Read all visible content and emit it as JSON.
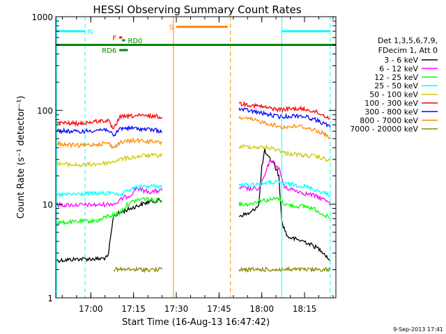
{
  "chart_data": {
    "type": "line",
    "title": "HESSI Observing Summary Count Rates",
    "xlabel": "Start Time (16-Aug-13 16:47:42)",
    "ylabel": "Count Rate (s⁻¹ detector⁻¹)",
    "xlim": [
      "16:47:42",
      "18:26:00"
    ],
    "ylim": [
      1,
      1000
    ],
    "yscale": "log",
    "x_ticks": [
      "17:00",
      "17:15",
      "17:30",
      "17:45",
      "18:00",
      "18:15"
    ],
    "y_ticks": [
      "1",
      "10",
      "100",
      "1000"
    ],
    "legend_header": [
      "Det 1,3,5,6,7,9,",
      "FDecim 1, Att 0"
    ],
    "legend_position": "right",
    "timestamp": "9-Sep-2013 17:41",
    "series": [
      {
        "name": "3 - 6 keV",
        "color": "#000000",
        "segments": [
          {
            "x": [
              "16:48",
              "16:56",
              "17:03",
              "17:06",
              "17:08",
              "17:10",
              "17:12",
              "17:14",
              "17:16",
              "17:20",
              "17:24",
              "17:25"
            ],
            "y": [
              2.5,
              2.6,
              2.6,
              2.7,
              7.5,
              8.0,
              8.5,
              9.0,
              9.5,
              10.5,
              11.0,
              10.8
            ]
          },
          {
            "x": [
              "17:52",
              "17:56",
              "17:59",
              "18:00",
              "18:01",
              "18:02",
              "18:04",
              "18:06",
              "18:07",
              "18:09",
              "18:12",
              "18:15",
              "18:18",
              "18:21",
              "18:24"
            ],
            "y": [
              7.5,
              8.0,
              10.0,
              25.0,
              37.0,
              32.0,
              28.0,
              20.0,
              6.5,
              4.5,
              4.2,
              4.0,
              3.6,
              3.2,
              2.5
            ]
          }
        ]
      },
      {
        "name": "6 - 12 keV",
        "color": "#ff00ff",
        "segments": [
          {
            "x": [
              "16:48",
              "16:56",
              "17:03",
              "17:06",
              "17:09",
              "17:11",
              "17:14",
              "17:16",
              "17:18",
              "17:21",
              "17:25"
            ],
            "y": [
              9.8,
              9.8,
              9.8,
              10.0,
              10.2,
              11.5,
              12.5,
              15.0,
              14.0,
              13.5,
              14.0
            ]
          },
          {
            "x": [
              "17:52",
              "17:56",
              "17:59",
              "18:01",
              "18:03",
              "18:06",
              "18:08",
              "18:12",
              "18:15",
              "18:18",
              "18:21",
              "18:24"
            ],
            "y": [
              15.0,
              14.5,
              14.5,
              20.0,
              30.0,
              24.0,
              15.0,
              14.0,
              13.0,
              12.5,
              11.5,
              10.5
            ]
          }
        ]
      },
      {
        "name": "12 - 25 keV",
        "color": "#00ff00",
        "segments": [
          {
            "x": [
              "16:48",
              "16:56",
              "17:03",
              "17:06",
              "17:08",
              "17:10",
              "17:13",
              "17:16",
              "17:19",
              "17:22",
              "17:25"
            ],
            "y": [
              6.3,
              6.5,
              6.7,
              7.5,
              7.6,
              8.0,
              10.0,
              11.0,
              11.5,
              11.0,
              11.0
            ]
          },
          {
            "x": [
              "17:52",
              "17:56",
              "17:59",
              "18:02",
              "18:06",
              "18:08",
              "18:12",
              "18:15",
              "18:18",
              "18:21",
              "18:24"
            ],
            "y": [
              10.0,
              10.0,
              11.0,
              11.0,
              11.5,
              10.0,
              9.5,
              9.5,
              9.0,
              8.0,
              7.0
            ]
          }
        ]
      },
      {
        "name": "25 - 50 keV",
        "color": "#00ffff",
        "segments": [
          {
            "x": [
              "16:48",
              "16:56",
              "17:03",
              "17:06",
              "17:08",
              "17:10",
              "17:13",
              "17:16",
              "17:19",
              "17:22",
              "17:25"
            ],
            "y": [
              12.5,
              12.8,
              13.0,
              13.0,
              13.5,
              12.0,
              14.0,
              15.0,
              15.5,
              15.5,
              15.5
            ]
          },
          {
            "x": [
              "17:52",
              "17:56",
              "17:59",
              "18:02",
              "18:06",
              "18:08",
              "18:12",
              "18:15",
              "18:18",
              "18:21",
              "18:24"
            ],
            "y": [
              16.0,
              16.0,
              16.5,
              17.0,
              17.0,
              16.5,
              16.0,
              15.5,
              14.5,
              13.5,
              12.5
            ]
          }
        ]
      },
      {
        "name": "50 - 100 keV",
        "color": "#cccc00",
        "segments": [
          {
            "x": [
              "16:48",
              "16:56",
              "17:03",
              "17:06",
              "17:08",
              "17:10",
              "17:13",
              "17:16",
              "17:19",
              "17:22",
              "17:25"
            ],
            "y": [
              27.0,
              26.0,
              27.0,
              27.5,
              28.5,
              30.0,
              31.0,
              32.0,
              33.0,
              33.0,
              33.0
            ]
          },
          {
            "x": [
              "17:52",
              "17:56",
              "17:59",
              "18:02",
              "18:06",
              "18:08",
              "18:12",
              "18:15",
              "18:18",
              "18:21",
              "18:24"
            ],
            "y": [
              41.0,
              41.0,
              40.5,
              40.0,
              38.0,
              35.0,
              34.0,
              33.0,
              32.5,
              31.0,
              29.0
            ]
          }
        ]
      },
      {
        "name": "100 - 300 keV",
        "color": "#ff0000",
        "segments": [
          {
            "x": [
              "16:48",
              "16:52",
              "16:56",
              "17:00",
              "17:03",
              "17:06",
              "17:08",
              "17:10",
              "17:13",
              "17:16",
              "17:19",
              "17:22",
              "17:25"
            ],
            "y": [
              74.0,
              73.0,
              72.0,
              75.0,
              77.0,
              78.0,
              62.0,
              85.0,
              86.0,
              88.0,
              87.0,
              87.0,
              85.0
            ]
          },
          {
            "x": [
              "17:52",
              "17:55",
              "17:58",
              "18:01",
              "18:04",
              "18:07",
              "18:10",
              "18:13",
              "18:16",
              "18:19",
              "18:22",
              "18:24"
            ],
            "y": [
              118.0,
              116.0,
              112.0,
              108.0,
              104.0,
              102.0,
              104.0,
              104.0,
              102.0,
              96.0,
              88.0,
              82.0
            ]
          }
        ]
      },
      {
        "name": "300 - 800 keV",
        "color": "#0000ff",
        "segments": [
          {
            "x": [
              "16:48",
              "16:52",
              "16:56",
              "17:00",
              "17:03",
              "17:06",
              "17:08",
              "17:10",
              "17:13",
              "17:16",
              "17:19",
              "17:22",
              "17:25"
            ],
            "y": [
              61.0,
              60.0,
              59.0,
              61.0,
              62.0,
              63.0,
              52.0,
              64.0,
              65.0,
              64.0,
              63.0,
              62.0,
              60.0
            ]
          },
          {
            "x": [
              "17:52",
              "17:55",
              "17:58",
              "18:01",
              "18:04",
              "18:07",
              "18:10",
              "18:13",
              "18:16",
              "18:19",
              "18:22",
              "18:24"
            ],
            "y": [
              103.0,
              100.0,
              96.0,
              92.0,
              88.0,
              85.0,
              87.0,
              88.0,
              85.0,
              79.0,
              72.0,
              66.0
            ]
          }
        ]
      },
      {
        "name": "800 - 7000 keV",
        "color": "#ff8800",
        "segments": [
          {
            "x": [
              "16:48",
              "16:52",
              "16:56",
              "17:00",
              "17:03",
              "17:06",
              "17:08",
              "17:10",
              "17:13",
              "17:16",
              "17:19",
              "17:22",
              "17:25"
            ],
            "y": [
              44.0,
              43.0,
              42.0,
              43.0,
              44.0,
              45.0,
              40.0,
              45.0,
              47.0,
              48.0,
              47.0,
              46.0,
              45.0
            ]
          },
          {
            "x": [
              "17:52",
              "17:55",
              "17:58",
              "18:01",
              "18:04",
              "18:07",
              "18:10",
              "18:13",
              "18:16",
              "18:19",
              "18:22",
              "18:24"
            ],
            "y": [
              84.0,
              81.0,
              78.0,
              74.0,
              70.0,
              66.0,
              67.0,
              68.0,
              65.0,
              61.0,
              56.0,
              51.0
            ]
          }
        ]
      },
      {
        "name": "7000 - 20000 keV",
        "color": "#888800",
        "segments": [
          {
            "x": [
              "17:08",
              "17:12",
              "17:16",
              "17:20",
              "17:24",
              "17:25"
            ],
            "y": [
              2.0,
              2.0,
              2.0,
              2.0,
              2.0,
              2.0
            ]
          },
          {
            "x": [
              "17:52",
              "17:56",
              "18:00",
              "18:04",
              "18:08",
              "18:12",
              "18:16",
              "18:20",
              "18:24"
            ],
            "y": [
              2.0,
              2.0,
              2.0,
              2.0,
              2.0,
              2.0,
              2.0,
              2.0,
              2.0
            ]
          }
        ]
      }
    ],
    "annotations": [
      {
        "text": "N",
        "color": "#00ffff",
        "x": [
          "16:47:42",
          "16:58"
        ],
        "y": 700
      },
      {
        "text": "",
        "color": "#00ffff",
        "x": [
          "18:07",
          "18:24"
        ],
        "y": 700
      },
      {
        "text": "F",
        "color": "#ff0000",
        "x": [
          "17:10",
          "17:11"
        ],
        "y": 600
      },
      {
        "text": "RD0",
        "color": "#008800",
        "x": [
          "17:11",
          "17:12"
        ],
        "y": 560
      },
      {
        "text": "RD6",
        "color": "#008800",
        "x": [
          "17:10",
          "17:13"
        ],
        "y": 440
      },
      {
        "text": "S",
        "color": "#ff8800",
        "x": [
          "17:30",
          "17:48"
        ],
        "y": 780
      }
    ],
    "reference_bars": [
      {
        "color": "#008800",
        "x": [
          "16:47:42",
          "18:26:00"
        ],
        "y": 500
      }
    ],
    "vertical_markers": [
      {
        "x": "16:48",
        "color": "#00ffff",
        "style": "solid"
      },
      {
        "x": "16:58",
        "color": "#00ffff",
        "style": "dashed"
      },
      {
        "x": "17:29",
        "color": "#ff8800",
        "style": "solid"
      },
      {
        "x": "17:49",
        "color": "#ff8800",
        "style": "dashed"
      },
      {
        "x": "18:07",
        "color": "#00ffff",
        "style": "solid"
      },
      {
        "x": "18:24",
        "color": "#00ffff",
        "style": "dashed"
      }
    ]
  }
}
